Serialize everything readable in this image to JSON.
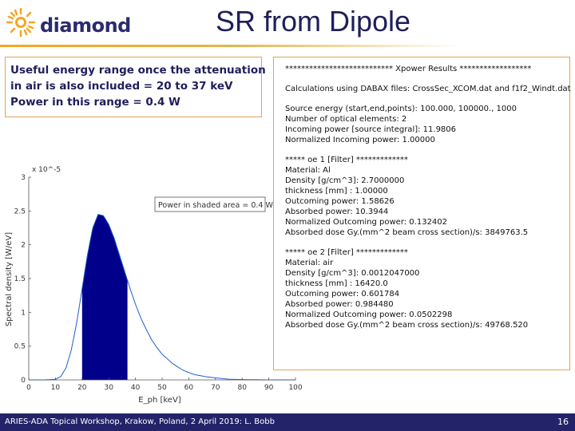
{
  "header": {
    "logo_text": "diamond",
    "title": "SR from Dipole"
  },
  "note": {
    "lines": [
      "Useful energy range once the attenuation",
      "in air is also included = 20 to 37 keV",
      "Power in this range = 0.4 W"
    ]
  },
  "chart_data": {
    "type": "area",
    "title": "",
    "xlabel": "E_ph [keV]",
    "ylabel": "Spectral density [W/eV]",
    "y_scale_label": "x 10^-5",
    "annotation": "Power in shaded area = 0.4 W",
    "xlim": [
      0,
      100
    ],
    "ylim": [
      0,
      3
    ],
    "x_ticks": [
      "0",
      "10",
      "20",
      "30",
      "40",
      "50",
      "60",
      "70",
      "80",
      "90",
      "100"
    ],
    "y_ticks": [
      "0",
      "0.5",
      "1",
      "1.5",
      "2",
      "2.5",
      "3"
    ],
    "shaded_range": [
      20,
      37
    ],
    "x": [
      0,
      6,
      10,
      12,
      14,
      16,
      18,
      20,
      22,
      24,
      26,
      28,
      30,
      32,
      34,
      36,
      38,
      40,
      42,
      44,
      46,
      48,
      50,
      54,
      58,
      62,
      66,
      70,
      75,
      80,
      90,
      100
    ],
    "values": [
      0,
      0,
      0.01,
      0.05,
      0.18,
      0.45,
      0.85,
      1.35,
      1.85,
      2.25,
      2.45,
      2.43,
      2.3,
      2.1,
      1.85,
      1.6,
      1.35,
      1.12,
      0.92,
      0.75,
      0.6,
      0.48,
      0.38,
      0.24,
      0.14,
      0.08,
      0.05,
      0.03,
      0.01,
      0.005,
      0,
      0
    ]
  },
  "results": {
    "lines": [
      "*************************** Xpower Results ******************",
      "",
      "Calculations using DABAX files: CrossSec_XCOM.dat and f1f2_Windt.dat",
      "",
      "Source energy (start,end,points): 100.000,  100000.,  1000",
      "Number of optical elements: 2",
      "Incoming power [source integral]: 11.9806",
      "Normalized Incoming power: 1.00000",
      "",
      "*****   oe 1  [Filter] *************",
      "Material: Al",
      "Density [g/cm^3]: 2.7000000",
      "thickness [mm] : 1.00000",
      "Outcoming power: 1.58626",
      "Absorbed power: 10.3944",
      "Normalized Outcoming power: 0.132402",
      "Absorbed dose Gy.(mm^2 beam cross section)/s: 3849763.5",
      "",
      "*****   oe 2  [Filter] *************",
      "Material: air",
      "Density [g/cm^3]: 0.0012047000",
      "thickness [mm] : 16420.0",
      "Outcoming power: 0.601784",
      "Absorbed power: 0.984480",
      "Normalized Outcoming power: 0.0502298",
      "Absorbed dose Gy.(mm^2 beam cross section)/s: 49768.520"
    ]
  },
  "footer": {
    "text": "ARIES-ADA Topical Workshop, Krakow, Poland, 2 April 2019: L. Bobb",
    "page": "16"
  },
  "colors": {
    "navy": "#23236a",
    "fill": "#00008b",
    "accent": "#f5a623"
  }
}
